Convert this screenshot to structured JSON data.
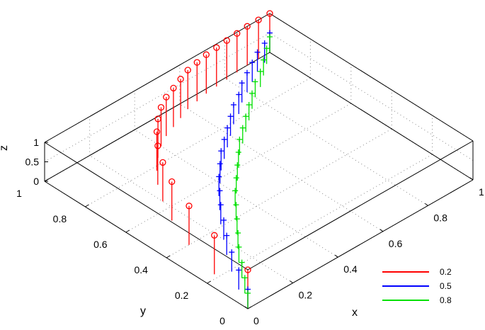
{
  "chart_data": {
    "type": "3d-stem",
    "title": "",
    "xlabel": "x",
    "ylabel": "y",
    "zlabel": "z",
    "xlim": [
      0,
      1
    ],
    "ylim": [
      0,
      1
    ],
    "zlim": [
      0,
      1
    ],
    "x_ticks": [
      "0",
      "0.2",
      "0.4",
      "0.6",
      "0.8",
      "1"
    ],
    "y_ticks": [
      "0",
      "0.2",
      "0.4",
      "0.6",
      "0.8",
      "1"
    ],
    "z_ticks": [
      "0",
      "0.5",
      "1"
    ],
    "grid": true,
    "legend_position": "bottom-right",
    "series": [
      {
        "name": "0.2",
        "color": "#ff0000",
        "marker": "circle",
        "points": [
          [
            0.0,
            0.0,
            1.0
          ],
          [
            0.05,
            0.22,
            1.0
          ],
          [
            0.1,
            0.4,
            1.0
          ],
          [
            0.15,
            0.54,
            1.0
          ],
          [
            0.2,
            0.64,
            1.0
          ],
          [
            0.25,
            0.72,
            1.0
          ],
          [
            0.3,
            0.78,
            1.0
          ],
          [
            0.35,
            0.83,
            1.0
          ],
          [
            0.4,
            0.87,
            1.0
          ],
          [
            0.45,
            0.9,
            1.0
          ],
          [
            0.5,
            0.92,
            1.0
          ],
          [
            0.55,
            0.94,
            1.0
          ],
          [
            0.6,
            0.96,
            1.0
          ],
          [
            0.65,
            0.97,
            1.0
          ],
          [
            0.7,
            0.98,
            1.0
          ],
          [
            0.75,
            0.985,
            1.0
          ],
          [
            0.8,
            0.99,
            1.0
          ],
          [
            0.85,
            0.995,
            1.0
          ],
          [
            0.9,
            1.0,
            1.0
          ],
          [
            0.95,
            1.0,
            1.0
          ],
          [
            1.0,
            1.0,
            1.0
          ]
        ]
      },
      {
        "name": "0.5",
        "color": "#0000ff",
        "marker": "plus",
        "points": [
          [
            0.0,
            0.0,
            0.5
          ],
          [
            0.05,
            0.1,
            0.5
          ],
          [
            0.1,
            0.19,
            0.5
          ],
          [
            0.15,
            0.27,
            0.5
          ],
          [
            0.2,
            0.34,
            0.5
          ],
          [
            0.25,
            0.41,
            0.5
          ],
          [
            0.3,
            0.47,
            0.5
          ],
          [
            0.35,
            0.53,
            0.5
          ],
          [
            0.4,
            0.58,
            0.5
          ],
          [
            0.45,
            0.63,
            0.5
          ],
          [
            0.5,
            0.67,
            0.5
          ],
          [
            0.55,
            0.71,
            0.5
          ],
          [
            0.6,
            0.75,
            0.5
          ],
          [
            0.65,
            0.79,
            0.5
          ],
          [
            0.7,
            0.82,
            0.5
          ],
          [
            0.75,
            0.86,
            0.5
          ],
          [
            0.8,
            0.89,
            0.5
          ],
          [
            0.85,
            0.92,
            0.5
          ],
          [
            0.9,
            0.95,
            0.5
          ],
          [
            0.95,
            0.97,
            0.5
          ],
          [
            1.0,
            1.0,
            0.5
          ]
        ]
      },
      {
        "name": "0.8",
        "color": "#00e000",
        "marker": "plus",
        "points": [
          [
            0.0,
            0.0,
            0.4
          ],
          [
            0.05,
            0.07,
            0.4
          ],
          [
            0.1,
            0.14,
            0.4
          ],
          [
            0.15,
            0.21,
            0.4
          ],
          [
            0.2,
            0.27,
            0.4
          ],
          [
            0.25,
            0.33,
            0.4
          ],
          [
            0.3,
            0.39,
            0.4
          ],
          [
            0.35,
            0.45,
            0.4
          ],
          [
            0.4,
            0.5,
            0.4
          ],
          [
            0.45,
            0.55,
            0.4
          ],
          [
            0.5,
            0.6,
            0.4
          ],
          [
            0.55,
            0.65,
            0.4
          ],
          [
            0.6,
            0.69,
            0.4
          ],
          [
            0.65,
            0.73,
            0.4
          ],
          [
            0.7,
            0.77,
            0.4
          ],
          [
            0.75,
            0.81,
            0.4
          ],
          [
            0.8,
            0.85,
            0.4
          ],
          [
            0.85,
            0.88,
            0.4
          ],
          [
            0.9,
            0.92,
            0.4
          ],
          [
            0.95,
            0.96,
            0.4
          ],
          [
            1.0,
            1.0,
            0.4
          ]
        ]
      }
    ]
  }
}
